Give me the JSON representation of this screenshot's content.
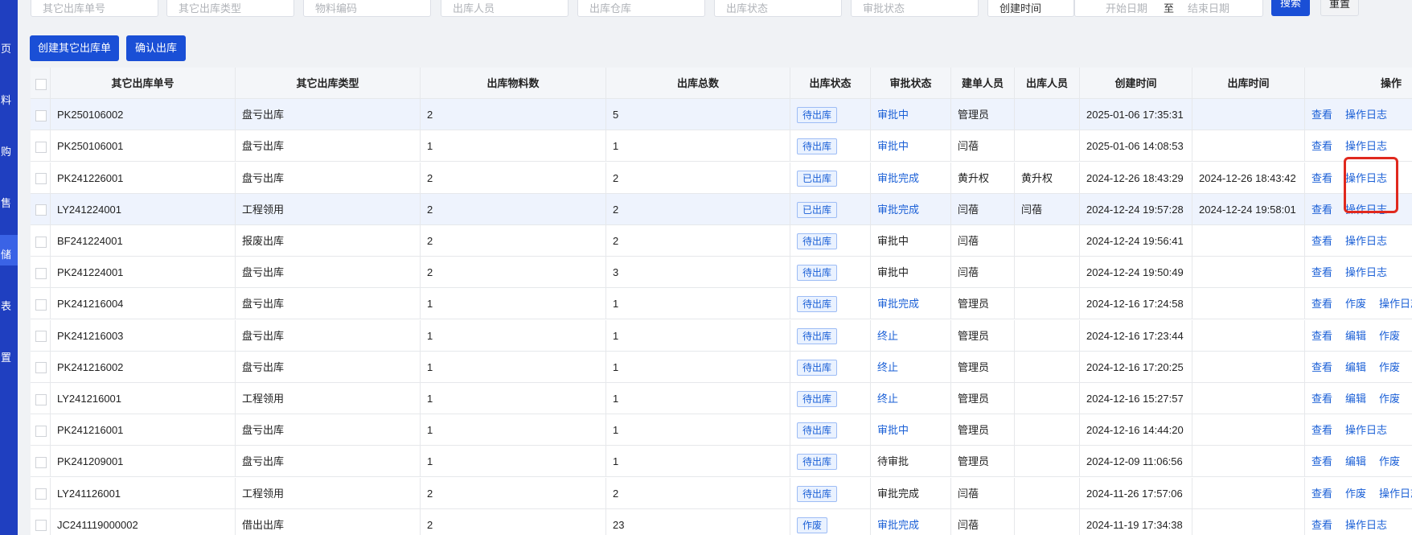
{
  "sidebar": {
    "items": [
      "页",
      "料",
      "购",
      "售",
      "储",
      "表",
      "置"
    ],
    "active": 4
  },
  "filters": {
    "inputs": [
      "其它出库单号",
      "其它出库类型",
      "物料编码",
      "出库人员",
      "出库仓库",
      "出库状态",
      "审批状态"
    ],
    "time_type": "创建时间",
    "start": "开始日期",
    "to": "至",
    "end": "结束日期",
    "search": "搜索",
    "reset": "重置"
  },
  "buttons": [
    "创建其它出库单",
    "确认出库"
  ],
  "table": {
    "headers": [
      "其它出库单号",
      "其它出库类型",
      "出库物料数",
      "出库总数",
      "出库状态",
      "审批状态",
      "建单人员",
      "出库人员",
      "创建时间",
      "出库时间",
      "操作"
    ],
    "rows": [
      {
        "cells": [
          "PK250106002",
          "盘亏出库",
          "2",
          "5",
          "待出库",
          "审批中",
          "管理员",
          "",
          "2025-01-06 17:35:31",
          ""
        ],
        "approval_color": "#1a5fd6",
        "actions": [
          "查看",
          "操作日志"
        ]
      },
      {
        "cells": [
          "PK250106001",
          "盘亏出库",
          "1",
          "1",
          "待出库",
          "审批中",
          "闫蓓",
          "",
          "2025-01-06 14:08:53",
          ""
        ],
        "approval_color": "#1a5fd6",
        "actions": [
          "查看",
          "操作日志"
        ]
      },
      {
        "cells": [
          "PK241226001",
          "盘亏出库",
          "2",
          "2",
          "已出库",
          "审批完成",
          "黄升权",
          "黄升权",
          "2024-12-26 18:43:29",
          "2024-12-26 18:43:42"
        ],
        "approval_color": "#1a5fd6",
        "actions": [
          "查看",
          "操作日志"
        ]
      },
      {
        "cells": [
          "LY241224001",
          "工程领用",
          "2",
          "2",
          "已出库",
          "审批完成",
          "闫蓓",
          "闫蓓",
          "2024-12-24 19:57:28",
          "2024-12-24 19:58:01"
        ],
        "approval_color": "#1a5fd6",
        "actions": [
          "查看",
          "操作日志"
        ]
      },
      {
        "cells": [
          "BF241224001",
          "报废出库",
          "2",
          "2",
          "待出库",
          "审批中",
          "闫蓓",
          "",
          "2024-12-24 19:56:41",
          ""
        ],
        "approval_color": "#222222",
        "actions": [
          "查看",
          "操作日志"
        ]
      },
      {
        "cells": [
          "PK241224001",
          "盘亏出库",
          "2",
          "3",
          "待出库",
          "审批中",
          "闫蓓",
          "",
          "2024-12-24 19:50:49",
          ""
        ],
        "approval_color": "#222222",
        "actions": [
          "查看",
          "操作日志"
        ]
      },
      {
        "cells": [
          "PK241216004",
          "盘亏出库",
          "1",
          "1",
          "待出库",
          "审批完成",
          "管理员",
          "",
          "2024-12-16 17:24:58",
          ""
        ],
        "approval_color": "#1a5fd6",
        "actions": [
          "查看",
          "作废",
          "操作日志"
        ]
      },
      {
        "cells": [
          "PK241216003",
          "盘亏出库",
          "1",
          "1",
          "待出库",
          "终止",
          "管理员",
          "",
          "2024-12-16 17:23:44",
          ""
        ],
        "approval_color": "#1a5fd6",
        "actions": [
          "查看",
          "编辑",
          "作废"
        ]
      },
      {
        "cells": [
          "PK241216002",
          "盘亏出库",
          "1",
          "1",
          "待出库",
          "终止",
          "管理员",
          "",
          "2024-12-16 17:20:25",
          ""
        ],
        "approval_color": "#1a5fd6",
        "actions": [
          "查看",
          "编辑",
          "作废"
        ]
      },
      {
        "cells": [
          "LY241216001",
          "工程领用",
          "1",
          "1",
          "待出库",
          "终止",
          "管理员",
          "",
          "2024-12-16 15:27:57",
          ""
        ],
        "approval_color": "#1a5fd6",
        "actions": [
          "查看",
          "编辑",
          "作废"
        ]
      },
      {
        "cells": [
          "PK241216001",
          "盘亏出库",
          "1",
          "1",
          "待出库",
          "审批中",
          "管理员",
          "",
          "2024-12-16 14:44:20",
          ""
        ],
        "approval_color": "#1a5fd6",
        "actions": [
          "查看",
          "操作日志"
        ]
      },
      {
        "cells": [
          "PK241209001",
          "盘亏出库",
          "1",
          "1",
          "待出库",
          "待审批",
          "管理员",
          "",
          "2024-12-09 11:06:56",
          ""
        ],
        "approval_color": "#222222",
        "actions": [
          "查看",
          "编辑",
          "作废"
        ]
      },
      {
        "cells": [
          "LY241126001",
          "工程领用",
          "2",
          "2",
          "待出库",
          "审批完成",
          "闫蓓",
          "",
          "2024-11-26 17:57:06",
          ""
        ],
        "approval_color": "#222222",
        "actions": [
          "查看",
          "作废",
          "操作日志"
        ]
      },
      {
        "cells": [
          "JC241119000002",
          "借出出库",
          "2",
          "23",
          "作废",
          "审批完成",
          "闫蓓",
          "",
          "2024-11-19 17:34:38",
          ""
        ],
        "approval_color": "#1a5fd6",
        "actions": [
          "查看",
          "操作日志"
        ]
      }
    ]
  }
}
